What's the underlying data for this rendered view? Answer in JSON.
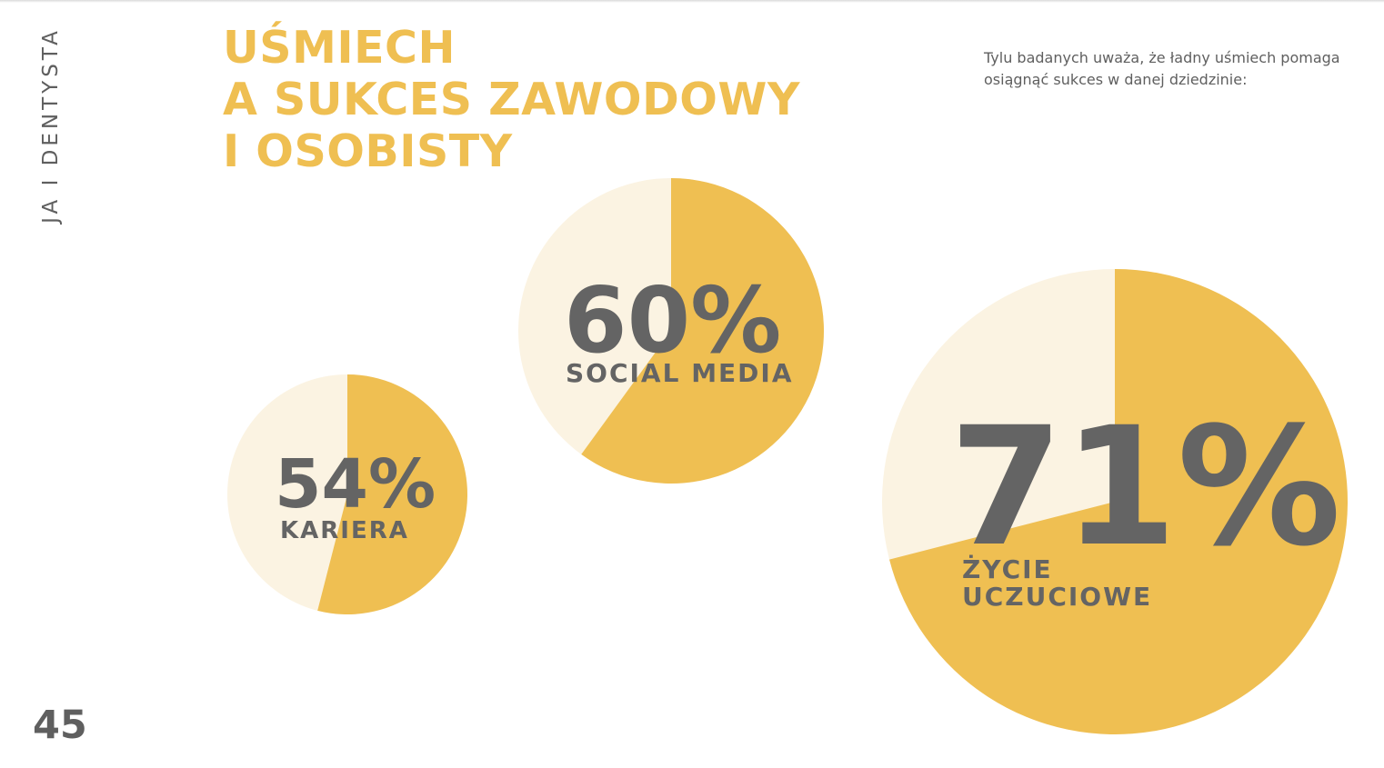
{
  "page": {
    "side_label": "JA I DENTYSTA",
    "page_number": "45",
    "title_lines": [
      "UŚMIECH",
      "A SUKCES ZAWODOWY",
      "I OSOBISTY"
    ],
    "intro_text": "Tylu badanych uważa, że ładny uśmiech pomaga osiągnąć sukces w danej dziedzinie:"
  },
  "colors": {
    "accent": "#efbf52",
    "remainder": "#fbf3e2",
    "text_gray": "#646464"
  },
  "chart_data": {
    "type": "pie",
    "title": "",
    "slices": [
      {
        "value": 54,
        "value_label": "54%",
        "label_lines": [
          "KARIERA"
        ]
      },
      {
        "value": 60,
        "value_label": "60%",
        "label_lines": [
          "SOCIAL MEDIA"
        ]
      },
      {
        "value": 71,
        "value_label": "71%",
        "label_lines": [
          "ŻYCIE",
          "UCZUCIOWE"
        ]
      }
    ]
  }
}
